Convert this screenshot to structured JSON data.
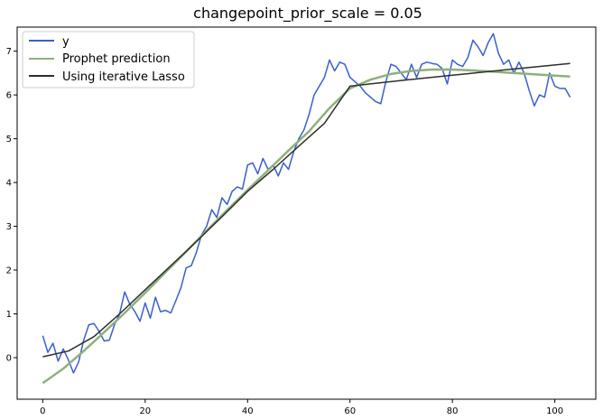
{
  "chart_data": {
    "type": "line",
    "title": "changepoint_prior_scale = 0.05",
    "xlabel": "",
    "ylabel": "",
    "xlim": [
      -5,
      108
    ],
    "ylim": [
      -0.95,
      7.55
    ],
    "x_ticks": [
      0,
      20,
      40,
      60,
      80,
      100
    ],
    "y_ticks": [
      0,
      1,
      2,
      3,
      4,
      5,
      6,
      7
    ],
    "grid": false,
    "legend_position": "top-left",
    "series": [
      {
        "name": "y",
        "color": "#3a5fcd",
        "x": [
          0,
          1,
          2,
          3,
          4,
          5,
          6,
          7,
          8,
          9,
          10,
          11,
          12,
          13,
          14,
          15,
          16,
          17,
          18,
          19,
          20,
          21,
          22,
          23,
          24,
          25,
          26,
          27,
          28,
          29,
          30,
          31,
          32,
          33,
          34,
          35,
          36,
          37,
          38,
          39,
          40,
          41,
          42,
          43,
          44,
          45,
          46,
          47,
          48,
          49,
          50,
          51,
          52,
          53,
          54,
          55,
          56,
          57,
          58,
          59,
          60,
          61,
          62,
          63,
          64,
          65,
          66,
          67,
          68,
          69,
          70,
          71,
          72,
          73,
          74,
          75,
          76,
          77,
          78,
          79,
          80,
          81,
          82,
          83,
          84,
          85,
          86,
          87,
          88,
          89,
          90,
          91,
          92,
          93,
          94,
          95,
          96,
          97,
          98,
          99,
          100,
          101,
          102,
          103
        ],
        "values": [
          0.5,
          0.12,
          0.33,
          -0.08,
          0.2,
          -0.05,
          -0.35,
          -0.1,
          0.4,
          0.75,
          0.78,
          0.6,
          0.38,
          0.4,
          0.75,
          1.0,
          1.5,
          1.22,
          1.05,
          0.83,
          1.25,
          0.9,
          1.38,
          1.05,
          1.08,
          1.02,
          1.3,
          1.6,
          2.05,
          2.1,
          2.4,
          2.8,
          3.0,
          3.38,
          3.2,
          3.65,
          3.5,
          3.8,
          3.9,
          3.85,
          4.4,
          4.45,
          4.2,
          4.55,
          4.3,
          4.4,
          4.15,
          4.45,
          4.3,
          4.7,
          5.0,
          5.2,
          5.55,
          6.0,
          6.2,
          6.4,
          6.8,
          6.55,
          6.75,
          6.7,
          6.4,
          6.3,
          6.2,
          6.05,
          5.95,
          5.85,
          5.8,
          6.3,
          6.7,
          6.65,
          6.5,
          6.35,
          6.7,
          6.4,
          6.7,
          6.75,
          6.72,
          6.7,
          6.6,
          6.25,
          6.8,
          6.7,
          6.65,
          6.85,
          7.25,
          7.1,
          6.9,
          7.2,
          7.4,
          6.95,
          6.7,
          6.8,
          6.5,
          6.75,
          6.5,
          6.1,
          5.75,
          6.0,
          5.95,
          6.5,
          6.2,
          6.15,
          6.15,
          5.95
        ]
      },
      {
        "name": "Prophet prediction",
        "color": "#8fb07a",
        "x": [
          0,
          4,
          8,
          12,
          16,
          20,
          24,
          28,
          32,
          36,
          40,
          44,
          48,
          52,
          56,
          60,
          64,
          68,
          72,
          76,
          80,
          84,
          88,
          92,
          96,
          100,
          103
        ],
        "values": [
          -0.58,
          -0.25,
          0.15,
          0.58,
          1.02,
          1.48,
          1.95,
          2.42,
          2.9,
          3.37,
          3.83,
          4.28,
          4.73,
          5.17,
          5.7,
          6.15,
          6.35,
          6.48,
          6.55,
          6.58,
          6.58,
          6.56,
          6.53,
          6.5,
          6.47,
          6.44,
          6.42
        ]
      },
      {
        "name": "Using iterative Lasso",
        "color": "#2e2e2e",
        "x": [
          0,
          5,
          10,
          15,
          20,
          25,
          30,
          35,
          40,
          45,
          50,
          55,
          60,
          70,
          80,
          90,
          103
        ],
        "values": [
          0.02,
          0.15,
          0.48,
          1.0,
          1.55,
          2.1,
          2.65,
          3.22,
          3.8,
          4.3,
          4.83,
          5.35,
          6.2,
          6.33,
          6.45,
          6.57,
          6.72
        ]
      }
    ]
  }
}
